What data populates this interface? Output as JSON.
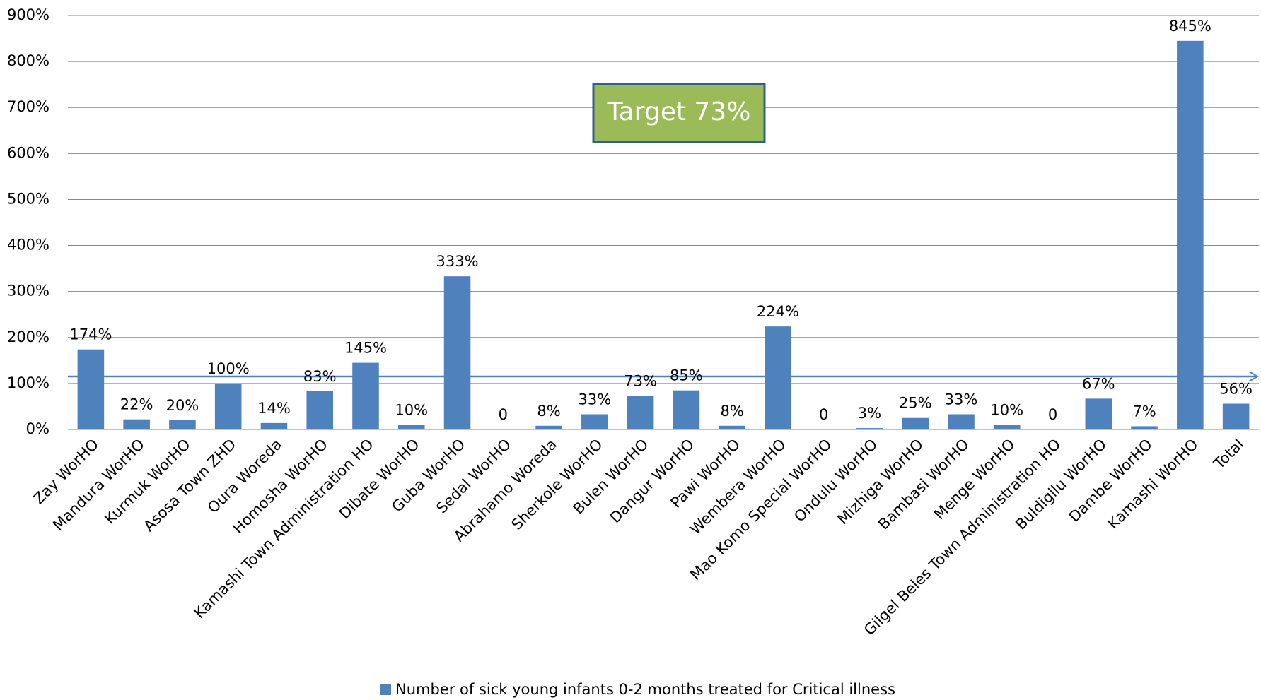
{
  "chart_data": {
    "type": "bar",
    "categories": [
      "Zay WorHO",
      "Mandura WorHO",
      "Kurmuk WorHO",
      "Asosa Town ZHD",
      "Oura Woreda",
      "Homosha WorHO",
      "Kamashi Town Administration HO",
      "Dibate WorHO",
      "Guba WorHO",
      "Sedal WorHO",
      "Abrahamo Woreda",
      "Sherkole WorHO",
      "Bulen WorHO",
      "Dangur WorHO",
      "Pawi WorHO",
      "Wembera WorHO",
      "Mao Komo Special WorHO",
      "Ondulu WorHO",
      "Mizhiga WorHO",
      "Bambasi WorHO",
      "Menge WorHO",
      "Gilgel Beles Town Administration HO",
      "Buldigilu WorHO",
      "Dambe WorHO",
      "Kamashi WorHO",
      "Total"
    ],
    "series": [
      {
        "name": "Number of sick young infants 0-2 months treated for Critical illness",
        "color": "#4f81bd",
        "values": [
          174,
          22,
          20,
          100,
          14,
          83,
          145,
          10,
          333,
          0,
          8,
          33,
          73,
          85,
          8,
          224,
          0,
          3,
          25,
          33,
          10,
          0,
          67,
          7,
          845,
          56
        ],
        "value_labels": [
          "174%",
          "22%",
          "20%",
          "100%",
          "14%",
          "83%",
          "145%",
          "10%",
          "333%",
          "0",
          "8%",
          "33%",
          "73%",
          "85%",
          "8%",
          "224%",
          "0",
          "3%",
          "25%",
          "33%",
          "10%",
          "0",
          "67%",
          "7%",
          "845%",
          "56%"
        ]
      }
    ],
    "ylim": [
      0,
      900
    ],
    "yticks": [
      {
        "value": 0,
        "label": "0%"
      },
      {
        "value": 100,
        "label": "100%"
      },
      {
        "value": 200,
        "label": "200%"
      },
      {
        "value": 300,
        "label": "300%"
      },
      {
        "value": 400,
        "label": "400%"
      },
      {
        "value": 500,
        "label": "500%"
      },
      {
        "value": 600,
        "label": "600%"
      },
      {
        "value": 700,
        "label": "700%"
      },
      {
        "value": 800,
        "label": "800%"
      },
      {
        "value": 900,
        "label": "900%"
      }
    ],
    "grid": true,
    "annotation": "Target 73%",
    "legend": "bottom"
  }
}
